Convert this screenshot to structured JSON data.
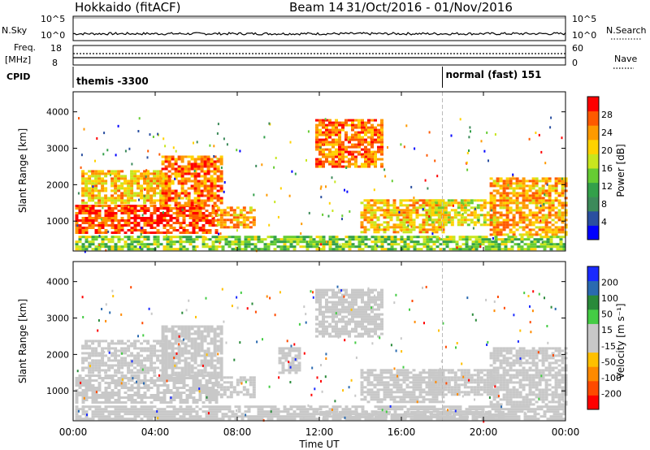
{
  "header": {
    "station": "Hokkaido (fitACF)",
    "beam": "Beam 14",
    "date_range": "31/Oct/2016 - 01/Nov/2016"
  },
  "nsky_panel": {
    "label": "N.Sky",
    "left_ticks": [
      "10^5",
      "10^0"
    ],
    "right_ticks": [
      "10^5",
      "10^0"
    ],
    "right_label": "N.Search"
  },
  "freq_panel": {
    "label_line1": "Freq.",
    "label_line2": "[MHz]",
    "left_ticks": [
      "18",
      "8"
    ],
    "right_ticks": [
      "60",
      "0"
    ],
    "right_label": "Nave"
  },
  "cpid_panel": {
    "label": "CPID",
    "segments": [
      {
        "text": "themis -3300",
        "start_hour": 0
      },
      {
        "text": "normal (fast) 151",
        "start_hour": 18
      }
    ]
  },
  "colors": {
    "power": [
      "#0000ff",
      "#2a4fa0",
      "#3c8a5a",
      "#33a04a",
      "#66cc33",
      "#c8e61e",
      "#ffd200",
      "#ff9a00",
      "#ff5a00",
      "#ff0000"
    ],
    "velocity": [
      "#ff0000",
      "#ff4a00",
      "#ff8a00",
      "#ffc000",
      "#c8c8c8",
      "#c8c8c8",
      "#44cc44",
      "#2a8a3a",
      "#2a6ab0",
      "#1a2aff"
    ]
  },
  "chart_data": [
    {
      "type": "heatmap",
      "title": "",
      "xlabel": "Time UT",
      "ylabel": "Slant Range [km]",
      "x_range_hours": [
        0,
        24
      ],
      "x_tick_labels": [
        "00:00",
        "04:00",
        "08:00",
        "12:00",
        "16:00",
        "20:00",
        "00:00"
      ],
      "y_range_km": [
        180,
        4550
      ],
      "y_tick_values": [
        1000,
        2000,
        3000,
        4000
      ],
      "colorbar": {
        "label": "Power [dB]",
        "ticks": [
          "4",
          "8",
          "12",
          "16",
          "20",
          "24",
          "28"
        ],
        "range": [
          0,
          30
        ]
      },
      "regions": [
        {
          "t0": 0.1,
          "t1": 7.0,
          "r0": 650,
          "r1": 1450,
          "value": 26
        },
        {
          "t0": 0.4,
          "t1": 4.5,
          "r0": 1500,
          "r1": 2400,
          "value": 20
        },
        {
          "t0": 4.3,
          "t1": 7.2,
          "r0": 1400,
          "r1": 2800,
          "value": 24
        },
        {
          "t0": 7.0,
          "t1": 8.8,
          "r0": 850,
          "r1": 1400,
          "value": 22
        },
        {
          "t0": 11.8,
          "t1": 15.0,
          "r0": 2500,
          "r1": 3800,
          "value": 24
        },
        {
          "t0": 14.0,
          "t1": 18.0,
          "r0": 700,
          "r1": 1600,
          "value": 20
        },
        {
          "t0": 17.3,
          "t1": 20.6,
          "r0": 900,
          "r1": 1600,
          "value": 18
        },
        {
          "t0": 20.3,
          "t1": 24.0,
          "r0": 650,
          "r1": 2200,
          "value": 22
        },
        {
          "t0": 0.1,
          "t1": 24.0,
          "r0": 200,
          "r1": 600,
          "value": 14
        }
      ]
    },
    {
      "type": "heatmap",
      "title": "",
      "xlabel": "Time UT",
      "ylabel": "Slant Range [km]",
      "x_range_hours": [
        0,
        24
      ],
      "x_tick_labels": [
        "00:00",
        "04:00",
        "08:00",
        "12:00",
        "16:00",
        "20:00",
        "00:00"
      ],
      "y_range_km": [
        180,
        4550
      ],
      "y_tick_values": [
        1000,
        2000,
        3000,
        4000
      ],
      "colorbar": {
        "label": "Velocity [m s⁻¹]",
        "ticks": [
          "-200",
          "-100",
          "-50",
          "-15",
          "15",
          "50",
          "100",
          "200"
        ],
        "range": [
          -250,
          250
        ]
      },
      "regions": [
        {
          "t0": 0.1,
          "t1": 7.0,
          "r0": 650,
          "r1": 1450,
          "value": 0
        },
        {
          "t0": 0.4,
          "t1": 4.5,
          "r0": 1500,
          "r1": 2400,
          "value": 0
        },
        {
          "t0": 4.3,
          "t1": 7.2,
          "r0": 1400,
          "r1": 2800,
          "value": -30
        },
        {
          "t0": 7.0,
          "t1": 8.8,
          "r0": 850,
          "r1": 1400,
          "value": 0
        },
        {
          "t0": 11.8,
          "t1": 15.0,
          "r0": 2500,
          "r1": 3800,
          "value": 0
        },
        {
          "t0": 14.0,
          "t1": 18.0,
          "r0": 700,
          "r1": 1600,
          "value": 0
        },
        {
          "t0": 17.3,
          "t1": 20.6,
          "r0": 900,
          "r1": 1600,
          "value": 0
        },
        {
          "t0": 20.3,
          "t1": 24.0,
          "r0": 650,
          "r1": 2200,
          "value": 0
        },
        {
          "t0": 10.0,
          "t1": 11.0,
          "r0": 1500,
          "r1": 2200,
          "value": 40
        },
        {
          "t0": 12.0,
          "t1": 21.0,
          "r0": 250,
          "r1": 450,
          "value": 40
        },
        {
          "t0": 0.1,
          "t1": 24.0,
          "r0": 200,
          "r1": 600,
          "value": -40
        }
      ]
    }
  ]
}
